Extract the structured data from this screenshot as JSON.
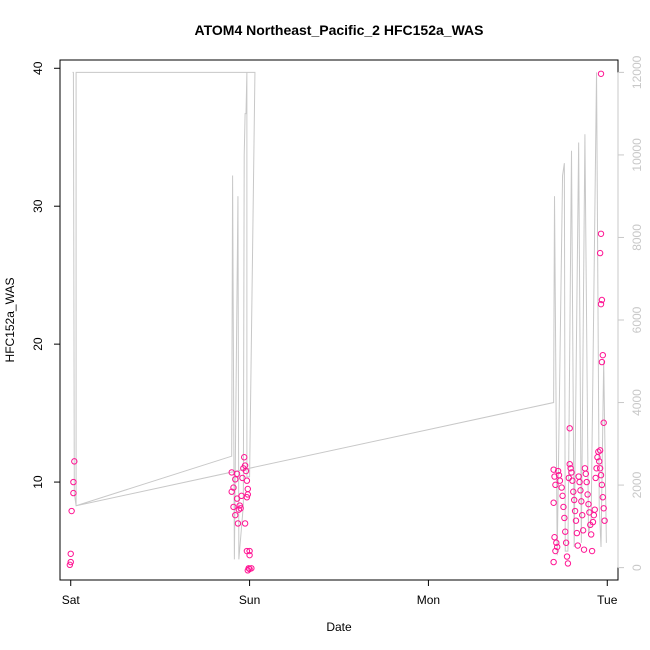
{
  "chart_data": {
    "type": "scatter",
    "title": "ATOM4 Northeast_Pacific_2 HFC152a_WAS",
    "xlabel": "Date",
    "ylabel": "HFC152a_WAS",
    "x_unit": "days",
    "x_ticks": [
      {
        "value": 0,
        "label": "Sat"
      },
      {
        "value": 1,
        "label": "Sun"
      },
      {
        "value": 2,
        "label": "Mon"
      },
      {
        "value": 3,
        "label": "Tue"
      }
    ],
    "xlim": [
      -0.06,
      3.06
    ],
    "ylim": [
      2.9,
      40.6
    ],
    "y_ticks": [
      10,
      20,
      30,
      40
    ],
    "y2lim": [
      -300,
      12300
    ],
    "y2_ticks": [
      0,
      2000,
      4000,
      6000,
      8000,
      10000,
      12000
    ],
    "grid": false,
    "colors": {
      "points": "#ff1493",
      "line": "#c8c8c8",
      "axes": "#000000",
      "right_axis": "#c8c8c8"
    },
    "series": [
      {
        "axis": "right",
        "style": "line",
        "points": [
          [
            0.01,
            12000
          ],
          [
            0.015,
            12000
          ],
          [
            0.02,
            1800
          ],
          [
            0.03,
            1500
          ],
          [
            0.9,
            2700
          ],
          [
            0.905,
            9500
          ],
          [
            0.915,
            200
          ],
          [
            0.93,
            6800
          ],
          [
            0.935,
            9000
          ],
          [
            0.94,
            200
          ],
          [
            0.965,
            1500
          ],
          [
            0.97,
            10000
          ],
          [
            0.975,
            11000
          ],
          [
            0.98,
            11000
          ],
          [
            0.985,
            12000
          ],
          [
            0.985,
            2200
          ],
          [
            1.0,
            2200
          ],
          [
            1.03,
            12000
          ],
          [
            0.03,
            12000
          ],
          [
            0.03,
            1500
          ],
          [
            2.7,
            4000
          ],
          [
            2.705,
            9000
          ],
          [
            2.72,
            300
          ],
          [
            2.75,
            9500
          ],
          [
            2.76,
            9800
          ],
          [
            2.765,
            400
          ],
          [
            2.78,
            400
          ],
          [
            2.8,
            10100
          ],
          [
            2.815,
            500
          ],
          [
            2.84,
            10300
          ],
          [
            2.855,
            600
          ],
          [
            2.875,
            10500
          ],
          [
            2.895,
            800
          ],
          [
            2.91,
            1200
          ],
          [
            2.94,
            12000
          ],
          [
            2.955,
            1500
          ],
          [
            2.965,
            500
          ],
          [
            2.98,
            5000
          ],
          [
            2.995,
            600
          ]
        ]
      },
      {
        "axis": "left",
        "style": "points",
        "points": [
          [
            0.02,
            11.5
          ],
          [
            0.015,
            10.0
          ],
          [
            0.015,
            9.2
          ],
          [
            0.005,
            7.9
          ],
          [
            0.0,
            4.8
          ],
          [
            0.0,
            4.2
          ],
          [
            -0.005,
            4.0
          ],
          [
            0.9,
            10.7
          ],
          [
            0.9,
            9.3
          ],
          [
            0.91,
            9.6
          ],
          [
            0.92,
            10.2
          ],
          [
            0.93,
            10.6
          ],
          [
            0.93,
            8.8
          ],
          [
            0.91,
            8.2
          ],
          [
            0.92,
            7.6
          ],
          [
            0.935,
            7.0
          ],
          [
            0.94,
            8.0
          ],
          [
            0.945,
            8.3
          ],
          [
            0.95,
            8.1
          ],
          [
            0.955,
            9.0
          ],
          [
            0.96,
            10.3
          ],
          [
            0.965,
            11.0
          ],
          [
            0.97,
            11.8
          ],
          [
            0.975,
            11.2
          ],
          [
            0.98,
            10.8
          ],
          [
            0.985,
            10.1
          ],
          [
            0.99,
            9.5
          ],
          [
            0.99,
            9.1
          ],
          [
            0.985,
            8.9
          ],
          [
            0.975,
            7.0
          ],
          [
            0.985,
            5.0
          ],
          [
            1.0,
            4.7
          ],
          [
            1.0,
            5.0
          ],
          [
            1.0,
            3.7
          ],
          [
            0.99,
            3.6
          ],
          [
            0.995,
            3.75
          ],
          [
            1.01,
            3.75
          ],
          [
            2.7,
            10.9
          ],
          [
            2.705,
            10.4
          ],
          [
            2.71,
            9.8
          ],
          [
            2.7,
            8.5
          ],
          [
            2.715,
            5.6
          ],
          [
            2.72,
            5.3
          ],
          [
            2.705,
            6.0
          ],
          [
            2.71,
            5.0
          ],
          [
            2.7,
            4.2
          ],
          [
            2.725,
            10.8
          ],
          [
            2.73,
            10.5
          ],
          [
            2.735,
            10.1
          ],
          [
            2.745,
            9.6
          ],
          [
            2.75,
            9.0
          ],
          [
            2.755,
            8.2
          ],
          [
            2.76,
            7.4
          ],
          [
            2.765,
            6.4
          ],
          [
            2.77,
            5.6
          ],
          [
            2.775,
            4.6
          ],
          [
            2.78,
            4.1
          ],
          [
            2.785,
            10.3
          ],
          [
            2.79,
            11.3
          ],
          [
            2.795,
            11.0
          ],
          [
            2.8,
            10.7
          ],
          [
            2.805,
            10.1
          ],
          [
            2.81,
            9.3
          ],
          [
            2.815,
            8.7
          ],
          [
            2.82,
            7.9
          ],
          [
            2.825,
            7.2
          ],
          [
            2.83,
            6.3
          ],
          [
            2.835,
            5.4
          ],
          [
            2.84,
            10.4
          ],
          [
            2.845,
            10.0
          ],
          [
            2.85,
            9.4
          ],
          [
            2.855,
            8.6
          ],
          [
            2.86,
            7.6
          ],
          [
            2.865,
            6.5
          ],
          [
            2.87,
            5.1
          ],
          [
            2.875,
            11.0
          ],
          [
            2.88,
            10.6
          ],
          [
            2.885,
            10.0
          ],
          [
            2.89,
            9.1
          ],
          [
            2.895,
            8.4
          ],
          [
            2.9,
            7.8
          ],
          [
            2.905,
            6.9
          ],
          [
            2.91,
            6.2
          ],
          [
            2.915,
            5.0
          ],
          [
            2.92,
            7.1
          ],
          [
            2.925,
            7.6
          ],
          [
            2.93,
            8.0
          ],
          [
            2.935,
            10.3
          ],
          [
            2.94,
            11.0
          ],
          [
            2.945,
            11.8
          ],
          [
            2.95,
            12.2
          ],
          [
            2.955,
            11.5
          ],
          [
            2.96,
            11.0
          ],
          [
            2.965,
            10.5
          ],
          [
            2.97,
            9.8
          ],
          [
            2.975,
            8.9
          ],
          [
            2.98,
            8.1
          ],
          [
            2.985,
            7.2
          ],
          [
            2.79,
            13.9
          ],
          [
            2.96,
            12.3
          ],
          [
            2.965,
            22.9
          ],
          [
            2.97,
            23.2
          ],
          [
            2.97,
            18.7
          ],
          [
            2.975,
            19.2
          ],
          [
            2.96,
            26.6
          ],
          [
            2.965,
            28.0
          ],
          [
            2.98,
            14.3
          ],
          [
            2.965,
            39.6
          ]
        ]
      }
    ]
  }
}
